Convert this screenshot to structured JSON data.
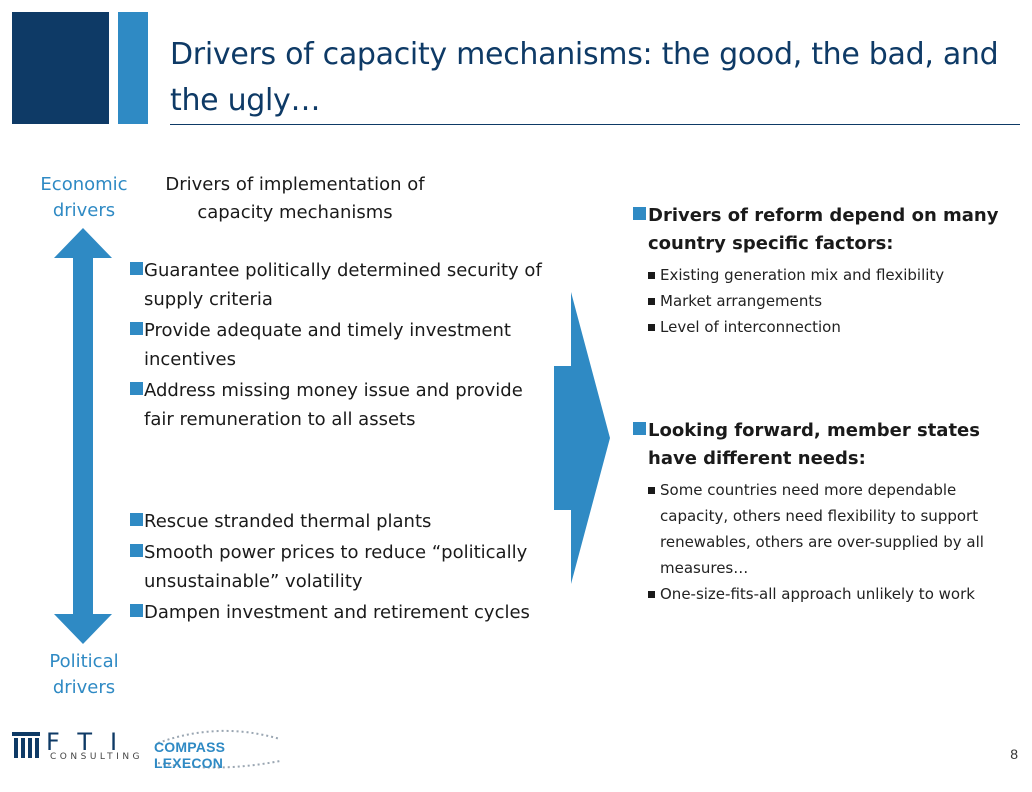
{
  "slide": {
    "title": "Drivers of capacity mechanisms: the good, the bad, and the ugly…",
    "page_number": "8"
  },
  "left": {
    "axis_top": "Economic drivers",
    "axis_bottom": "Political drivers",
    "heading": "Drivers of implementation of capacity mechanisms",
    "economic_bullets": [
      "Guarantee politically determined security of supply criteria",
      "Provide adequate and timely investment incentives",
      "Address missing money issue and provide fair remuneration to all assets"
    ],
    "political_bullets": [
      "Rescue stranded thermal plants",
      "Smooth power prices to reduce “politically unsustainable” volatility",
      "Dampen investment and retirement cycles"
    ]
  },
  "right": {
    "block1": {
      "heading": "Drivers of reform depend on many country specific factors:",
      "items": [
        "Existing generation mix and flexibility",
        "Market arrangements",
        "Level of interconnection"
      ]
    },
    "block2": {
      "heading": "Looking forward, member states have different needs:",
      "items": [
        "Some countries need more dependable capacity, others need flexibility to support renewables, others are over-supplied by all measures…",
        "One-size-fits-all approach unlikely to work"
      ]
    }
  },
  "footer": {
    "fti_name": "FTI",
    "fti_sub": "CONSULTING",
    "cl_name": "COMPASS LEXECON"
  },
  "colors": {
    "dark_blue": "#0e3a66",
    "accent_blue": "#2f8ac4"
  }
}
